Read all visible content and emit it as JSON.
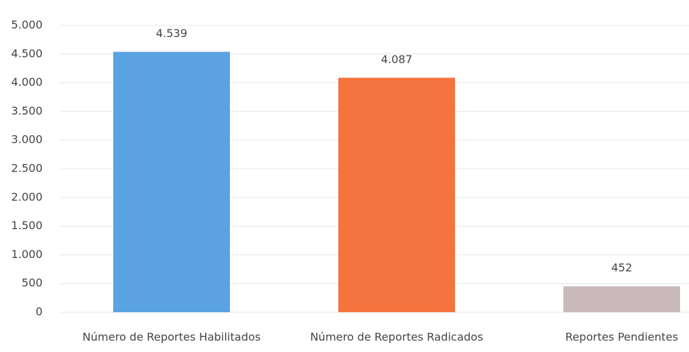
{
  "chart_data": {
    "type": "bar",
    "categories": [
      "Número de Reportes Habilitados",
      "Número de Reportes Radicados",
      "Reportes Pendientes"
    ],
    "values": [
      4539,
      4087,
      452
    ],
    "value_labels": [
      "4.539",
      "4.087",
      "452"
    ],
    "colors": [
      "#5aa2e2",
      "#f5733f",
      "#c9b9bb"
    ],
    "ylim": [
      0,
      5000
    ],
    "yticks": [
      0,
      500,
      {
        "value": 1000,
        "label": "1.000"
      },
      {
        "value": 1500,
        "label": "1.500"
      },
      {
        "value": 2000,
        "label": "2.000"
      },
      {
        "value": 2500,
        "label": "2.500"
      },
      {
        "value": 3000,
        "label": "3.000"
      },
      {
        "value": 3500,
        "label": "3.500"
      },
      {
        "value": 4000,
        "label": "4.000"
      },
      {
        "value": 4500,
        "label": "4.500"
      },
      {
        "value": 5000,
        "label": "5.000"
      }
    ],
    "grid": true
  }
}
